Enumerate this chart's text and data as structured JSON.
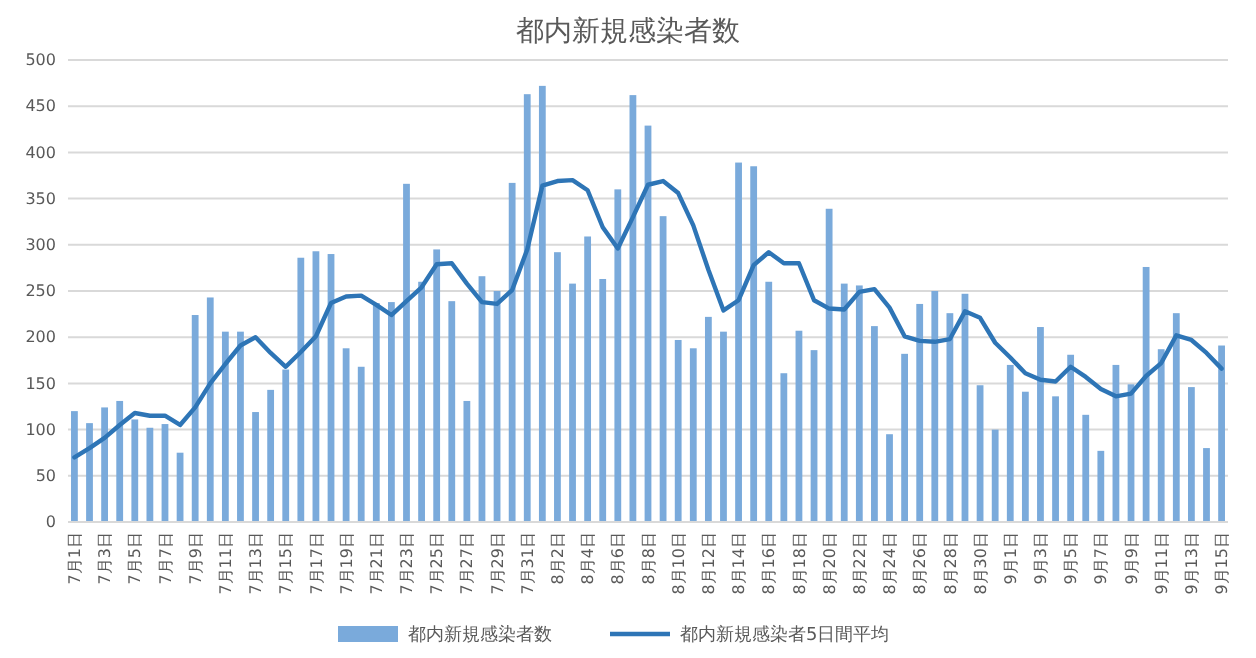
{
  "chart_data": {
    "type": "bar",
    "title": "都内新規感染者数",
    "categories": [
      "7月1日",
      null,
      "7月3日",
      null,
      "7月5日",
      null,
      "7月7日",
      null,
      "7月9日",
      null,
      "7月11日",
      null,
      "7月13日",
      null,
      "7月15日",
      null,
      "7月17日",
      null,
      "7月19日",
      null,
      "7月21日",
      null,
      "7月23日",
      null,
      "7月25日",
      null,
      "7月27日",
      null,
      "7月29日",
      null,
      "7月31日",
      null,
      "8月2日",
      null,
      "8月4日",
      null,
      "8月6日",
      null,
      "8月8日",
      null,
      "8月10日",
      null,
      "8月12日",
      null,
      "8月14日",
      null,
      "8月16日",
      null,
      "8月18日",
      null,
      "8月20日",
      null,
      "8月22日",
      null,
      "8月24日",
      null,
      "8月26日",
      null,
      "8月28日",
      null,
      "8月30日",
      null,
      "9月1日",
      null,
      "9月3日",
      null,
      "9月5日",
      null,
      "9月7日",
      null,
      "9月9日",
      null,
      "9月11日",
      null,
      "9月13日",
      null,
      "9月15日"
    ],
    "series": [
      {
        "name": "都内新規感染者数",
        "color": "#7aaadb",
        "values": [
          120,
          107,
          124,
          131,
          111,
          102,
          106,
          75,
          224,
          243,
          206,
          206,
          119,
          143,
          165,
          286,
          293,
          290,
          188,
          168,
          237,
          238,
          366,
          260,
          295,
          239,
          131,
          266,
          250,
          367,
          463,
          472,
          292,
          258,
          309,
          263,
          360,
          462,
          429,
          331,
          197,
          188,
          222,
          206,
          389,
          385,
          260,
          161,
          207,
          186,
          339,
          258,
          256,
          212,
          95,
          182,
          236,
          250,
          226,
          247,
          148,
          100,
          170,
          141,
          211,
          136,
          181,
          116,
          77,
          170,
          149,
          276,
          187,
          226,
          146,
          80,
          191
        ]
      },
      {
        "name": "都内新規感染者5日間平均",
        "type": "line",
        "color": "#2e75b6",
        "values": [
          70,
          80,
          91,
          105,
          118,
          115,
          115,
          105,
          124,
          150,
          171,
          191,
          200,
          183,
          168,
          184,
          201,
          237,
          244,
          245,
          235,
          224,
          239,
          254,
          279,
          280,
          258,
          238,
          236,
          251,
          295,
          364,
          369,
          370,
          359,
          319,
          296,
          330,
          365,
          369,
          356,
          321,
          273,
          229,
          240,
          278,
          292,
          280,
          280,
          240,
          231,
          230,
          249,
          252,
          232,
          201,
          196,
          195,
          198,
          228,
          221,
          194,
          178,
          161,
          154,
          152,
          168,
          157,
          144,
          136,
          139,
          158,
          172,
          202,
          197,
          183,
          166
        ]
      }
    ],
    "ylim": [
      0,
      500
    ],
    "yticks": [
      0,
      50,
      100,
      150,
      200,
      250,
      300,
      350,
      400,
      450,
      500
    ],
    "grid": "y",
    "legend": "bottom"
  }
}
